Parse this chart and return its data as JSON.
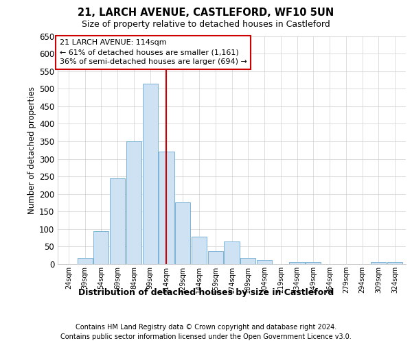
{
  "title_line1": "21, LARCH AVENUE, CASTLEFORD, WF10 5UN",
  "title_line2": "Size of property relative to detached houses in Castleford",
  "xlabel_bottom": "Distribution of detached houses by size in Castleford",
  "ylabel": "Number of detached properties",
  "footnote1": "Contains HM Land Registry data © Crown copyright and database right 2024.",
  "footnote2": "Contains public sector information licensed under the Open Government Licence v3.0.",
  "annotation_title": "21 LARCH AVENUE: 114sqm",
  "annotation_line1": "← 61% of detached houses are smaller (1,161)",
  "annotation_line2": "36% of semi-detached houses are larger (694) →",
  "subject_value": 114,
  "categories": [
    24,
    39,
    54,
    69,
    84,
    99,
    114,
    129,
    144,
    159,
    174,
    189,
    204,
    219,
    234,
    249,
    264,
    279,
    294,
    309,
    324
  ],
  "values": [
    0,
    18,
    93,
    245,
    350,
    515,
    320,
    175,
    78,
    38,
    65,
    18,
    12,
    0,
    5,
    5,
    0,
    0,
    0,
    5,
    5
  ],
  "bar_color": "#cfe2f3",
  "bar_edge_color": "#7ab3d4",
  "subject_line_color": "#cc0000",
  "annotation_box_edge_color": "#cc0000",
  "annotation_box_fill": "white",
  "ylim_max": 650,
  "ytick_step": 50,
  "background_color": "white",
  "grid_color": "#d0d0d0"
}
